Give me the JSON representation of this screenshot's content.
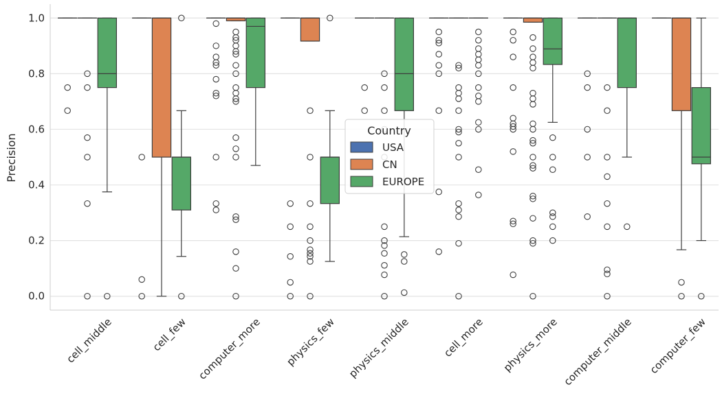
{
  "chart_data": {
    "type": "box",
    "title": "",
    "xlabel": "",
    "ylabel": "Precision",
    "ylim": [
      -0.05,
      1.05
    ],
    "yticks": [
      0.0,
      0.2,
      0.4,
      0.6,
      0.8,
      1.0
    ],
    "ytick_labels": [
      "0.0",
      "0.2",
      "0.4",
      "0.6",
      "0.8",
      "1.0"
    ],
    "grid": "horizontal",
    "legend": {
      "title": "Country",
      "placement": "center",
      "entries": [
        "USA",
        "CN",
        "EUROPE"
      ]
    },
    "categories": [
      "cell_middle",
      "cell_few",
      "computer_more",
      "physics_few",
      "physics_middle",
      "cell_more",
      "physics_more",
      "computer_middle",
      "computer_few"
    ],
    "series": [
      {
        "name": "USA",
        "color": "#4c72b0",
        "boxes": [
          {
            "q1": 1.0,
            "median": 1.0,
            "q3": 1.0,
            "whisker_low": 1.0,
            "whisker_high": 1.0,
            "outliers": [
              0.75,
              0.667
            ]
          },
          {
            "q1": 1.0,
            "median": 1.0,
            "q3": 1.0,
            "whisker_low": 1.0,
            "whisker_high": 1.0,
            "outliers": [
              0.5,
              0.06,
              0.0
            ]
          },
          {
            "q1": 1.0,
            "median": 1.0,
            "q3": 1.0,
            "whisker_low": 1.0,
            "whisker_high": 1.0,
            "outliers": [
              0.98,
              0.9,
              0.86,
              0.84,
              0.83,
              0.78,
              0.73,
              0.72,
              0.5,
              0.333,
              0.31
            ]
          },
          {
            "q1": 1.0,
            "median": 1.0,
            "q3": 1.0,
            "whisker_low": 1.0,
            "whisker_high": 1.0,
            "outliers": [
              0.333,
              0.25,
              0.143,
              0.05,
              0.0
            ]
          },
          {
            "q1": 1.0,
            "median": 1.0,
            "q3": 1.0,
            "whisker_low": 1.0,
            "whisker_high": 1.0,
            "outliers": [
              0.75,
              0.667
            ]
          },
          {
            "q1": 1.0,
            "median": 1.0,
            "q3": 1.0,
            "whisker_low": 1.0,
            "whisker_high": 1.0,
            "outliers": [
              0.95,
              0.92,
              0.91,
              0.87,
              0.83,
              0.8,
              0.667,
              0.375,
              0.16
            ]
          },
          {
            "q1": 1.0,
            "median": 1.0,
            "q3": 1.0,
            "whisker_low": 1.0,
            "whisker_high": 1.0,
            "outliers": [
              0.95,
              0.92,
              0.86,
              0.75,
              0.64,
              0.62,
              0.61,
              0.6,
              0.52,
              0.27,
              0.26,
              0.077
            ]
          },
          {
            "q1": 1.0,
            "median": 1.0,
            "q3": 1.0,
            "whisker_low": 1.0,
            "whisker_high": 1.0,
            "outliers": [
              0.8,
              0.75,
              0.6,
              0.5,
              0.286
            ]
          },
          {
            "q1": 1.0,
            "median": 1.0,
            "q3": 1.0,
            "whisker_low": 1.0,
            "whisker_high": 1.0,
            "outliers": []
          }
        ]
      },
      {
        "name": "CN",
        "color": "#dd8452",
        "boxes": [
          {
            "q1": 1.0,
            "median": 1.0,
            "q3": 1.0,
            "whisker_low": 1.0,
            "whisker_high": 1.0,
            "outliers": [
              0.8,
              0.75,
              0.57,
              0.5,
              0.333,
              0.0
            ]
          },
          {
            "q1": 0.5,
            "median": 1.0,
            "q3": 1.0,
            "whisker_low": 0.0,
            "whisker_high": 1.0,
            "outliers": []
          },
          {
            "q1": 0.99,
            "median": 1.0,
            "q3": 1.0,
            "whisker_low": 0.99,
            "whisker_high": 1.0,
            "outliers": [
              0.95,
              0.93,
              0.92,
              0.9,
              0.88,
              0.87,
              0.83,
              0.8,
              0.75,
              0.73,
              0.71,
              0.7,
              0.57,
              0.53,
              0.5,
              0.286,
              0.275,
              0.16,
              0.1,
              0.0
            ]
          },
          {
            "q1": 0.917,
            "median": 1.0,
            "q3": 1.0,
            "whisker_low": 0.917,
            "whisker_high": 1.0,
            "outliers": [
              0.667,
              0.5,
              0.333,
              0.25,
              0.2,
              0.167,
              0.154,
              0.143,
              0.125,
              0.0
            ]
          },
          {
            "q1": 1.0,
            "median": 1.0,
            "q3": 1.0,
            "whisker_low": 1.0,
            "whisker_high": 1.0,
            "outliers": [
              0.8,
              0.75,
              0.667,
              0.6,
              0.5,
              0.25,
              0.2,
              0.182,
              0.154,
              0.111,
              0.077,
              0.0
            ]
          },
          {
            "q1": 1.0,
            "median": 1.0,
            "q3": 1.0,
            "whisker_low": 1.0,
            "whisker_high": 1.0,
            "outliers": [
              0.83,
              0.82,
              0.75,
              0.73,
              0.71,
              0.667,
              0.6,
              0.59,
              0.55,
              0.5,
              0.333,
              0.31,
              0.286,
              0.19,
              0.0
            ]
          },
          {
            "q1": 0.985,
            "median": 1.0,
            "q3": 1.0,
            "whisker_low": 0.985,
            "whisker_high": 1.0,
            "outliers": [
              0.93,
              0.89,
              0.86,
              0.84,
              0.82,
              0.73,
              0.71,
              0.69,
              0.62,
              0.6,
              0.56,
              0.55,
              0.5,
              0.47,
              0.46,
              0.36,
              0.35,
              0.28,
              0.2,
              0.19,
              0.0
            ]
          },
          {
            "q1": 1.0,
            "median": 1.0,
            "q3": 1.0,
            "whisker_low": 1.0,
            "whisker_high": 1.0,
            "outliers": [
              0.75,
              0.667,
              0.5,
              0.43,
              0.333,
              0.25,
              0.095,
              0.08,
              0.0
            ]
          },
          {
            "q1": 0.667,
            "median": 1.0,
            "q3": 1.0,
            "whisker_low": 0.167,
            "whisker_high": 1.0,
            "outliers": [
              0.05,
              0.0
            ]
          }
        ]
      },
      {
        "name": "EUROPE",
        "color": "#55a868",
        "boxes": [
          {
            "q1": 0.75,
            "median": 0.8,
            "q3": 1.0,
            "whisker_low": 0.375,
            "whisker_high": 1.0,
            "outliers": [
              0.0
            ]
          },
          {
            "q1": 0.31,
            "median": 0.5,
            "q3": 0.5,
            "whisker_low": 0.143,
            "whisker_high": 0.667,
            "outliers": [
              1.0,
              0.0
            ]
          },
          {
            "q1": 0.75,
            "median": 0.97,
            "q3": 1.0,
            "whisker_low": 0.47,
            "whisker_high": 1.0,
            "outliers": []
          },
          {
            "q1": 0.333,
            "median": 0.5,
            "q3": 0.5,
            "whisker_low": 0.125,
            "whisker_high": 0.667,
            "outliers": [
              1.0
            ]
          },
          {
            "q1": 0.667,
            "median": 0.8,
            "q3": 1.0,
            "whisker_low": 0.214,
            "whisker_high": 1.0,
            "outliers": [
              0.15,
              0.125,
              0.013
            ]
          },
          {
            "q1": 1.0,
            "median": 1.0,
            "q3": 1.0,
            "whisker_low": 1.0,
            "whisker_high": 1.0,
            "outliers": [
              0.95,
              0.92,
              0.89,
              0.87,
              0.85,
              0.83,
              0.8,
              0.75,
              0.72,
              0.7,
              0.625,
              0.6,
              0.455,
              0.364
            ]
          },
          {
            "q1": 0.833,
            "median": 0.889,
            "q3": 1.0,
            "whisker_low": 0.625,
            "whisker_high": 1.0,
            "outliers": [
              0.57,
              0.5,
              0.455,
              0.3,
              0.286,
              0.25,
              0.2
            ]
          },
          {
            "q1": 0.75,
            "median": 1.0,
            "q3": 1.0,
            "whisker_low": 0.5,
            "whisker_high": 1.0,
            "outliers": [
              0.25
            ]
          },
          {
            "q1": 0.476,
            "median": 0.5,
            "q3": 0.75,
            "whisker_low": 0.2,
            "whisker_high": 1.0,
            "outliers": [
              0.0
            ]
          }
        ]
      }
    ]
  }
}
